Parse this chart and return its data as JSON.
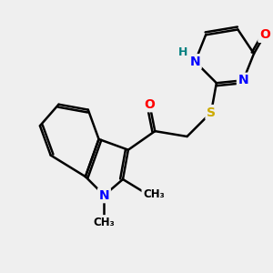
{
  "bg_color": "#efefef",
  "atom_colors": {
    "C": "#000000",
    "N": "#0000ff",
    "O": "#ff0000",
    "S": "#ccaa00",
    "H": "#008080"
  },
  "bond_color": "#000000",
  "bond_width": 1.8,
  "font_size_atom": 10,
  "font_size_methyl": 8.5
}
